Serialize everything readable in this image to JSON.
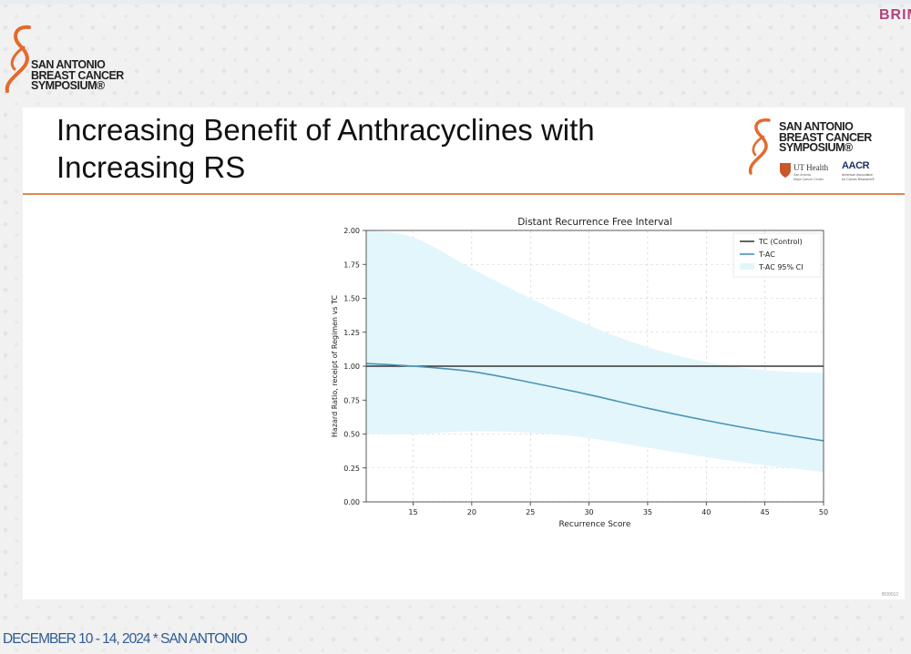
{
  "header": {
    "brand_corner": "BRIM",
    "logo_text": "SAN ANTONIO\nBREAST CANCER\nSYMPOSIUM®"
  },
  "slide": {
    "title": "Increasing Benefit of Anthracyclines with\nIncreasing RS",
    "slide_number": "BD0012"
  },
  "logos": {
    "sabcs_text": "SAN ANTONIO\nBREAST CANCER\nSYMPOSIUM®",
    "ut_health_name": "UT Health",
    "ut_health_sub": "San Antonio\nMays Cancer Center",
    "aacr_name": "AACR",
    "aacr_sub": "American Association\nfor Cancer Research®"
  },
  "colors": {
    "accent_orange": "#e0884f",
    "footer_blue": "#2e5c92",
    "tac_line": "#4a93b8",
    "ci_fill": "#e3f6fb",
    "control_line": "#111111"
  },
  "chart_data": {
    "type": "line",
    "title": "Distant Recurrence Free Interval",
    "xlabel": "Recurrence Score",
    "ylabel": "Hazard Ratio, receipt of Regimen vs TC",
    "xlim": [
      11,
      50
    ],
    "ylim": [
      0,
      2.0
    ],
    "xticks": [
      15,
      20,
      25,
      30,
      35,
      40,
      45,
      50
    ],
    "yticks": [
      0.0,
      0.25,
      0.5,
      0.75,
      1.0,
      1.25,
      1.5,
      1.75,
      2.0
    ],
    "ytick_labels": [
      "0.00",
      "0.25",
      "0.50",
      "0.75",
      "1.00",
      "1.25",
      "1.50",
      "1.75",
      "2.00"
    ],
    "grid": true,
    "legend_position": "top-right",
    "series": [
      {
        "name": "TC (Control)",
        "style": "line",
        "x": [
          11,
          50
        ],
        "values": [
          1.0,
          1.0
        ]
      },
      {
        "name": "T-AC",
        "style": "line",
        "x": [
          11,
          15,
          20,
          25,
          30,
          35,
          40,
          45,
          50
        ],
        "values": [
          1.02,
          1.0,
          0.96,
          0.88,
          0.79,
          0.69,
          0.6,
          0.52,
          0.45
        ]
      },
      {
        "name": "T-AC 95% CI",
        "style": "band",
        "x": [
          11,
          15,
          20,
          25,
          30,
          35,
          40,
          45,
          50
        ],
        "upper": [
          2.0,
          1.95,
          1.72,
          1.5,
          1.3,
          1.14,
          1.03,
          0.97,
          0.95
        ],
        "lower": [
          0.5,
          0.5,
          0.52,
          0.51,
          0.47,
          0.4,
          0.33,
          0.27,
          0.22
        ]
      }
    ]
  },
  "footer": {
    "text": "DECEMBER 10 - 14, 2024 * SAN ANTONIO"
  }
}
